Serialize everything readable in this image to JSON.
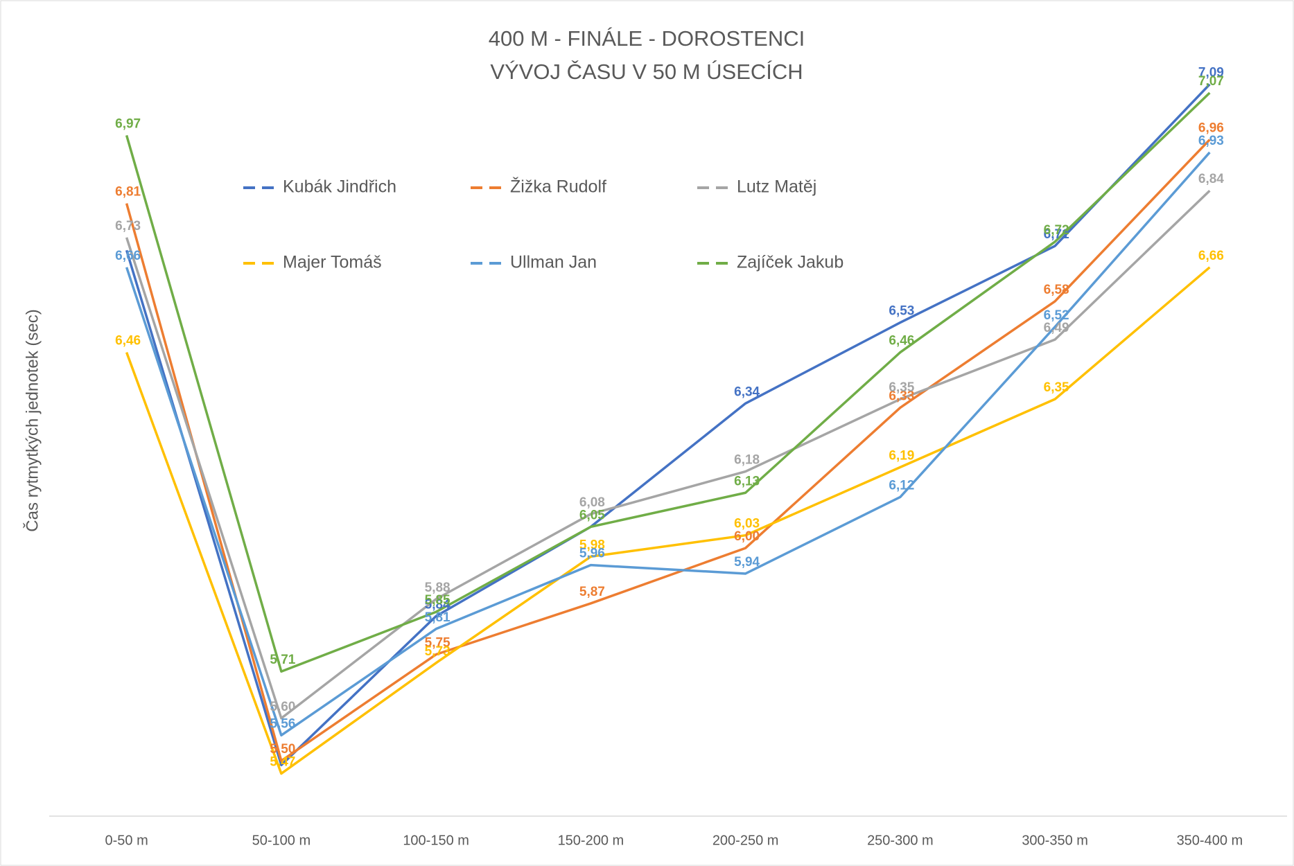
{
  "chart_data": {
    "type": "line",
    "title": "400 M - FINÁLE - DOROSTENCI",
    "subtitle": "VÝVOJ ČASU V 50 M ÚSECÍCH",
    "y_label": "Čas rytmytkých jednotek (sec)",
    "categories": [
      "0-50 m",
      "50-100 m",
      "100-150 m",
      "150-200 m",
      "200-250 m",
      "250-300 m",
      "300-350 m",
      "350-400 m"
    ],
    "ylim": [
      5.37,
      7.21
    ],
    "legend": "top",
    "series": [
      {
        "name": "Kubák Jindřich",
        "color": "#4472c4",
        "values": [
          6.7,
          5.49,
          5.84,
          6.05,
          6.34,
          6.53,
          6.71,
          7.09
        ],
        "value_labels": [
          null,
          null,
          "5,84",
          null,
          "6,34",
          "6,53",
          "6,71",
          "7,09"
        ]
      },
      {
        "name": "Žižka Rudolf",
        "color": "#ed7d31",
        "values": [
          6.81,
          5.5,
          5.75,
          5.87,
          6.0,
          6.33,
          6.58,
          6.96
        ],
        "value_labels": [
          "6,81",
          "5,50",
          "5,75",
          "5,87",
          "6,00",
          "6,33",
          "6,58",
          "6,96"
        ]
      },
      {
        "name": "Lutz Matěj",
        "color": "#a5a5a5",
        "values": [
          6.73,
          5.6,
          5.88,
          6.08,
          6.18,
          6.35,
          6.49,
          6.84
        ],
        "value_labels": [
          "6,73",
          "5,60",
          "5,88",
          "6,08",
          "6,18",
          "6,35",
          "6,49",
          "6,84"
        ]
      },
      {
        "name": "Majer Tomáš",
        "color": "#ffc000",
        "values": [
          6.46,
          5.47,
          5.73,
          5.98,
          6.03,
          6.19,
          6.35,
          6.66
        ],
        "value_labels": [
          "6,46",
          "5,47",
          "5,73",
          "5,98",
          "6,03",
          "6,19",
          "6,35",
          "6,66"
        ]
      },
      {
        "name": "Ullman Jan",
        "color": "#5b9bd5",
        "values": [
          6.66,
          5.56,
          5.81,
          5.96,
          5.94,
          6.12,
          6.52,
          6.93
        ],
        "value_labels": [
          "6,66",
          "5,56",
          "5,81",
          "5,96",
          "5,94",
          "6,12",
          "6,52",
          "6,93"
        ]
      },
      {
        "name": "Zajíček Jakub",
        "color": "#70ad47",
        "values": [
          6.97,
          5.71,
          5.85,
          6.05,
          6.13,
          6.46,
          6.72,
          7.07
        ],
        "value_labels": [
          "6,97",
          "5,71",
          "5,85",
          "6,05",
          "6,13",
          "6,46",
          "6,72",
          "7,07"
        ]
      }
    ]
  }
}
